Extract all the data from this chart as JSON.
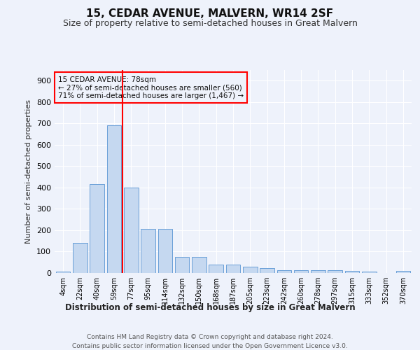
{
  "title": "15, CEDAR AVENUE, MALVERN, WR14 2SF",
  "subtitle": "Size of property relative to semi-detached houses in Great Malvern",
  "xlabel_bottom": "Distribution of semi-detached houses by size in Great Malvern",
  "ylabel": "Number of semi-detached properties",
  "footer_line1": "Contains HM Land Registry data © Crown copyright and database right 2024.",
  "footer_line2": "Contains public sector information licensed under the Open Government Licence v3.0.",
  "bar_labels": [
    "4sqm",
    "22sqm",
    "40sqm",
    "59sqm",
    "77sqm",
    "95sqm",
    "114sqm",
    "132sqm",
    "150sqm",
    "168sqm",
    "187sqm",
    "205sqm",
    "223sqm",
    "242sqm",
    "260sqm",
    "278sqm",
    "297sqm",
    "315sqm",
    "333sqm",
    "352sqm",
    "370sqm"
  ],
  "bar_values": [
    8,
    140,
    415,
    690,
    400,
    205,
    205,
    75,
    75,
    40,
    40,
    28,
    22,
    12,
    13,
    13,
    12,
    9,
    8,
    0,
    9
  ],
  "bar_color": "#c5d8f0",
  "bar_edge_color": "#6a9fd8",
  "ylim": [
    0,
    950
  ],
  "yticks": [
    0,
    100,
    200,
    300,
    400,
    500,
    600,
    700,
    800,
    900
  ],
  "red_line_x": 3.5,
  "annotation_text_line1": "15 CEDAR AVENUE: 78sqm",
  "annotation_text_line2": "← 27% of semi-detached houses are smaller (560)",
  "annotation_text_line3": "71% of semi-detached houses are larger (1,467) →",
  "background_color": "#eef2fb",
  "grid_color": "#ffffff",
  "title_fontsize": 11,
  "subtitle_fontsize": 9
}
